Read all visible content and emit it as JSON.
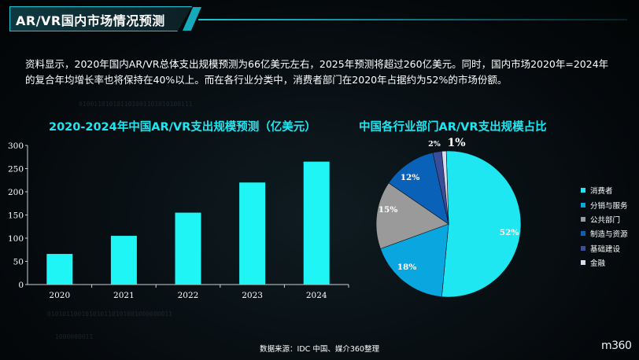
{
  "header": {
    "title": "AR/VR国内市场情况预测"
  },
  "description": {
    "text": "资料显示，2020年国内AR/VR总体支出规模预测为66亿美元左右，2025年预测将超过260亿美元。同时，国内市场2020年=2024年的复合年均增长率也将保持在40%以上。而在各行业分类中，消费者部门在2020年占据约为52%的市场份额。"
  },
  "footer": {
    "source": "数据来源：IDC 中国、媒介360整理",
    "logo": "m360"
  },
  "colors": {
    "accent": "#17c7d8",
    "bar": "#1ff5f5",
    "chart_title": "#1ee7f2"
  },
  "chart_data": [
    {
      "type": "bar",
      "title": "2020-2024年中国AR/VR支出规模预测（亿美元）",
      "categories": [
        "2020",
        "2021",
        "2022",
        "2023",
        "2024"
      ],
      "values": [
        66,
        105,
        155,
        220,
        265
      ],
      "ylim": [
        0,
        300
      ],
      "yticks": [
        0,
        50,
        100,
        150,
        200,
        250,
        300
      ],
      "grid": false
    },
    {
      "type": "pie",
      "title": "中国各行业部门AR/VR支出规模占比",
      "legend_position": "right",
      "slices": [
        {
          "label": "消费者",
          "value": 52,
          "display": "52%",
          "color": "#1ee7f2"
        },
        {
          "label": "分销与服务",
          "value": 18,
          "display": "18%",
          "color": "#0aa6df"
        },
        {
          "label": "公共部门",
          "value": 15,
          "display": "15%",
          "color": "#9a9a9a"
        },
        {
          "label": "制造与资源",
          "value": 12,
          "display": "12%",
          "color": "#0a62b8"
        },
        {
          "label": "基础建设",
          "value": 2,
          "display": "2%",
          "color": "#3a4d9a"
        },
        {
          "label": "金融",
          "value": 1,
          "display": "1%",
          "color": "#d8dcec"
        }
      ]
    }
  ]
}
